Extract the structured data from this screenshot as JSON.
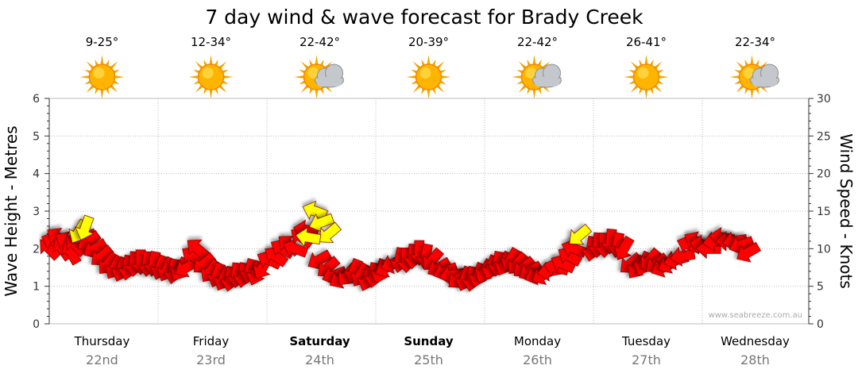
{
  "chart_data": {
    "type": "scatter",
    "title": "7 day wind & wave forecast for Brady Creek",
    "ylabel": "Wave Height - Metres",
    "y2label": "Wind Speed - Knots",
    "ylim": [
      0,
      6
    ],
    "y2lim": [
      0,
      30
    ],
    "yticks": [
      "0",
      "1",
      "2",
      "3",
      "4",
      "5",
      "6"
    ],
    "y2ticks": [
      "0",
      "5",
      "10",
      "15",
      "20",
      "25",
      "30"
    ],
    "grid": true,
    "watermark": "www.seabreeze.com.au",
    "colors": {
      "normal": "#ff0000",
      "strong": "#ffff00",
      "outline": "#7a0000"
    },
    "days": [
      {
        "name": "Thursday",
        "date": "22nd",
        "temp": "9-25°",
        "icon": "sunny-icon",
        "bold": false
      },
      {
        "name": "Friday",
        "date": "23rd",
        "temp": "12-34°",
        "icon": "sunny-icon",
        "bold": false
      },
      {
        "name": "Saturday",
        "date": "24th",
        "temp": "22-42°",
        "icon": "partly-cloudy-icon",
        "bold": true
      },
      {
        "name": "Sunday",
        "date": "25th",
        "temp": "20-39°",
        "icon": "sunny-icon",
        "bold": true
      },
      {
        "name": "Monday",
        "date": "26th",
        "temp": "22-42°",
        "icon": "partly-cloudy-icon",
        "bold": false
      },
      {
        "name": "Tuesday",
        "date": "27th",
        "temp": "26-41°",
        "icon": "sunny-icon",
        "bold": false
      },
      {
        "name": "Wednesday",
        "date": "28th",
        "temp": "22-34°",
        "icon": "partly-cloudy-icon",
        "bold": false
      }
    ],
    "series": [
      {
        "values": [
          [
            0.0,
            2.0,
            225
          ],
          [
            0.04,
            2.2,
            200
          ],
          [
            0.08,
            2.3,
            215
          ],
          [
            0.12,
            2.0,
            235
          ],
          [
            0.16,
            2.2,
            210
          ],
          [
            0.2,
            1.9,
            240
          ],
          [
            0.24,
            2.1,
            225
          ],
          [
            0.32,
            2.3,
            160
          ],
          [
            0.36,
            2.2,
            145
          ],
          [
            0.42,
            2.0,
            150
          ],
          [
            0.48,
            1.8,
            140
          ],
          [
            0.54,
            1.6,
            130
          ],
          [
            0.6,
            1.5,
            120
          ],
          [
            0.66,
            1.45,
            110
          ],
          [
            0.72,
            1.5,
            100
          ],
          [
            0.78,
            1.6,
            95
          ],
          [
            0.84,
            1.65,
            90
          ],
          [
            0.9,
            1.6,
            95
          ],
          [
            0.96,
            1.6,
            100
          ],
          [
            1.02,
            1.5,
            110
          ],
          [
            1.08,
            1.45,
            115
          ],
          [
            1.14,
            1.4,
            100
          ],
          [
            1.2,
            1.45,
            120
          ],
          [
            1.26,
            1.5,
            150
          ],
          [
            1.32,
            1.8,
            215
          ],
          [
            1.36,
            2.0,
            220
          ],
          [
            1.42,
            1.6,
            140
          ],
          [
            1.48,
            1.4,
            125
          ],
          [
            1.54,
            1.3,
            110
          ],
          [
            1.6,
            1.2,
            115
          ],
          [
            1.66,
            1.2,
            100
          ],
          [
            1.72,
            1.3,
            95
          ],
          [
            1.78,
            1.3,
            100
          ],
          [
            1.84,
            1.4,
            105
          ],
          [
            1.9,
            1.35,
            110
          ],
          [
            1.96,
            1.5,
            120
          ],
          [
            2.02,
            1.7,
            205
          ],
          [
            2.08,
            1.8,
            215
          ],
          [
            2.14,
            2.0,
            210
          ],
          [
            2.2,
            2.1,
            220
          ],
          [
            2.26,
            2.0,
            200
          ],
          [
            2.32,
            2.3,
            215
          ],
          [
            2.36,
            2.5,
            190
          ],
          [
            2.48,
            1.7,
            150
          ],
          [
            2.56,
            1.5,
            140
          ],
          [
            2.62,
            1.3,
            160
          ],
          [
            2.68,
            1.2,
            150
          ],
          [
            2.74,
            1.3,
            130
          ],
          [
            2.8,
            1.4,
            110
          ],
          [
            2.86,
            1.3,
            120
          ],
          [
            2.92,
            1.2,
            110
          ],
          [
            2.98,
            1.3,
            100
          ],
          [
            3.04,
            1.4,
            110
          ],
          [
            3.1,
            1.5,
            150
          ],
          [
            3.16,
            1.6,
            160
          ],
          [
            3.22,
            1.7,
            100
          ],
          [
            3.28,
            1.7,
            90
          ],
          [
            3.34,
            1.8,
            95
          ],
          [
            3.4,
            1.9,
            90
          ],
          [
            3.46,
            1.8,
            100
          ],
          [
            3.52,
            1.7,
            130
          ],
          [
            3.58,
            1.5,
            150
          ],
          [
            3.64,
            1.4,
            160
          ],
          [
            3.7,
            1.3,
            170
          ],
          [
            3.76,
            1.2,
            140
          ],
          [
            3.82,
            1.2,
            110
          ],
          [
            3.88,
            1.2,
            100
          ],
          [
            3.94,
            1.3,
            110
          ],
          [
            4.0,
            1.4,
            120
          ],
          [
            4.06,
            1.5,
            110
          ],
          [
            4.12,
            1.6,
            100
          ],
          [
            4.18,
            1.6,
            115
          ],
          [
            4.24,
            1.7,
            120
          ],
          [
            4.3,
            1.6,
            130
          ],
          [
            4.36,
            1.5,
            140
          ],
          [
            4.42,
            1.4,
            150
          ],
          [
            4.48,
            1.3,
            160
          ],
          [
            4.54,
            1.3,
            150
          ],
          [
            4.6,
            1.4,
            170
          ],
          [
            4.66,
            1.5,
            195
          ],
          [
            4.72,
            1.6,
            205
          ],
          [
            4.78,
            1.8,
            210
          ],
          [
            4.82,
            2.0,
            200
          ],
          [
            4.98,
            2.0,
            100
          ],
          [
            5.04,
            2.1,
            95
          ],
          [
            5.1,
            2.1,
            90
          ],
          [
            5.16,
            2.2,
            95
          ],
          [
            5.22,
            2.1,
            100
          ],
          [
            5.28,
            2.0,
            120
          ],
          [
            5.34,
            1.6,
            140
          ],
          [
            5.4,
            1.5,
            125
          ],
          [
            5.46,
            1.6,
            115
          ],
          [
            5.52,
            1.7,
            130
          ],
          [
            5.58,
            1.6,
            145
          ],
          [
            5.64,
            1.5,
            155
          ],
          [
            5.7,
            1.6,
            150
          ],
          [
            5.76,
            1.7,
            165
          ],
          [
            5.82,
            1.8,
            170
          ],
          [
            5.88,
            2.1,
            200
          ],
          [
            5.94,
            2.2,
            210
          ],
          [
            6.0,
            2.1,
            190
          ],
          [
            6.06,
            2.0,
            180
          ],
          [
            6.12,
            2.2,
            170
          ],
          [
            6.18,
            2.3,
            190
          ],
          [
            6.24,
            2.2,
            180
          ],
          [
            6.3,
            2.2,
            170
          ],
          [
            6.36,
            2.1,
            160
          ],
          [
            6.42,
            1.9,
            150
          ]
        ]
      },
      {
        "values": [
          [
            0.27,
            2.45,
            120
          ],
          [
            0.33,
            2.55,
            110
          ],
          [
            2.44,
            3.0,
            200
          ],
          [
            2.5,
            2.7,
            160
          ],
          [
            2.57,
            2.4,
            140
          ],
          [
            2.38,
            2.3,
            190
          ],
          [
            4.87,
            2.35,
            140
          ]
        ]
      }
    ]
  }
}
